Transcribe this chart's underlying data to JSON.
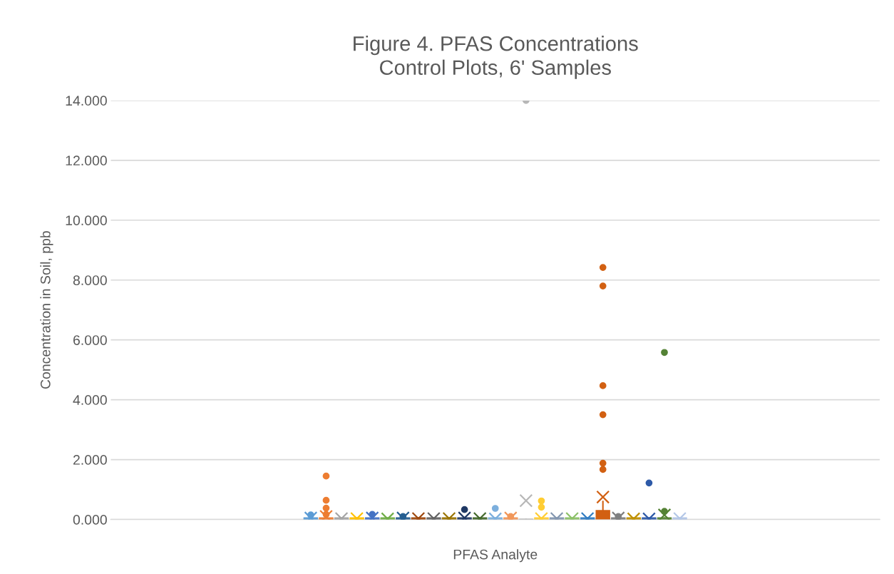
{
  "chart_data": {
    "type": "box",
    "title": "Figure 4. PFAS Concentrations\nControl Plots, 6' Samples",
    "ylabel": "Concentration in Soil, ppb",
    "categories": [
      "PFAS Analyte"
    ],
    "series": [
      {
        "color": "#5b9bd5",
        "boxes": [
          {
            "low": 0,
            "q1": 0,
            "median": 0,
            "q3": 0.05,
            "high": 0.05,
            "mean": 0.05,
            "outliers": [
              0.15
            ]
          }
        ]
      },
      {
        "color": "#ed7d31",
        "boxes": [
          {
            "low": 0,
            "q1": 0,
            "median": 0,
            "q3": 0.05,
            "high": 0.05,
            "mean": 0.1,
            "outliers": [
              1.45,
              0.64,
              0.38,
              0.17
            ]
          }
        ]
      },
      {
        "color": "#a5a5a5",
        "boxes": [
          {
            "low": 0,
            "q1": 0,
            "median": 0,
            "q3": 0.05,
            "high": 0.05,
            "mean": 0.03
          }
        ]
      },
      {
        "color": "#ffc000",
        "boxes": [
          {
            "low": 0,
            "q1": 0,
            "median": 0,
            "q3": 0.05,
            "high": 0.05,
            "mean": 0.03
          }
        ]
      },
      {
        "color": "#4472c4",
        "boxes": [
          {
            "low": 0,
            "q1": 0,
            "median": 0,
            "q3": 0.05,
            "high": 0.05,
            "mean": 0.05,
            "outliers": [
              0.17
            ]
          }
        ]
      },
      {
        "color": "#70ad47",
        "boxes": [
          {
            "low": 0,
            "q1": 0,
            "median": 0,
            "q3": 0.05,
            "high": 0.05,
            "mean": 0.02
          }
        ]
      },
      {
        "color": "#255e91",
        "boxes": [
          {
            "low": 0,
            "q1": 0,
            "median": 0,
            "q3": 0.05,
            "high": 0.05,
            "mean": 0.05,
            "outliers": [
              0.1
            ]
          }
        ]
      },
      {
        "color": "#9e480e",
        "boxes": [
          {
            "low": 0,
            "q1": 0,
            "median": 0,
            "q3": 0.05,
            "high": 0.05,
            "mean": 0.03
          }
        ]
      },
      {
        "color": "#636363",
        "boxes": [
          {
            "low": 0,
            "q1": 0,
            "median": 0,
            "q3": 0.05,
            "high": 0.05,
            "mean": 0.03
          }
        ]
      },
      {
        "color": "#997300",
        "boxes": [
          {
            "low": 0,
            "q1": 0,
            "median": 0,
            "q3": 0.05,
            "high": 0.05,
            "mean": 0.03
          }
        ]
      },
      {
        "color": "#1f3864",
        "boxes": [
          {
            "low": 0,
            "q1": 0,
            "median": 0,
            "q3": 0.05,
            "high": 0.05,
            "mean": 0.05,
            "outliers": [
              0.33
            ]
          }
        ]
      },
      {
        "color": "#43682b",
        "boxes": [
          {
            "low": 0,
            "q1": 0,
            "median": 0,
            "q3": 0.05,
            "high": 0.05,
            "mean": 0.03
          }
        ]
      },
      {
        "color": "#7cafdd",
        "boxes": [
          {
            "low": 0,
            "q1": 0,
            "median": 0,
            "q3": 0.05,
            "high": 0.05,
            "mean": 0.02,
            "outliers": [
              0.37
            ]
          }
        ]
      },
      {
        "color": "#f1975a",
        "boxes": [
          {
            "low": 0,
            "q1": 0,
            "median": 0,
            "q3": 0.05,
            "high": 0.05,
            "mean": 0.05,
            "outliers": [
              0.1
            ]
          }
        ]
      },
      {
        "color": "#b7b7b7",
        "boxes": [
          {
            "low": 0,
            "q1": 0,
            "median": 0,
            "q3": 0,
            "high": 0,
            "mean": 0.63,
            "outliers": [
              14.0
            ]
          }
        ]
      },
      {
        "color": "#ffcd33",
        "boxes": [
          {
            "low": 0,
            "q1": 0,
            "median": 0,
            "q3": 0.05,
            "high": 0.05,
            "mean": 0.03,
            "outliers": [
              0.62,
              0.41
            ]
          }
        ]
      },
      {
        "color": "#8497b0",
        "boxes": [
          {
            "low": 0,
            "q1": 0,
            "median": 0,
            "q3": 0.05,
            "high": 0.05,
            "mean": 0.03
          }
        ]
      },
      {
        "color": "#8cc168",
        "boxes": [
          {
            "low": 0,
            "q1": 0,
            "median": 0,
            "q3": 0.05,
            "high": 0.05,
            "mean": 0.03
          }
        ]
      },
      {
        "color": "#327dc2",
        "boxes": [
          {
            "low": 0,
            "q1": 0,
            "median": 0,
            "q3": 0.05,
            "high": 0.05,
            "mean": 0.03
          }
        ]
      },
      {
        "color": "#d26012",
        "boxes": [
          {
            "low": 0,
            "q1": 0,
            "median": 0.02,
            "q3": 0.29,
            "high": 0.6,
            "mean": 0.75,
            "outliers": [
              8.42,
              7.8,
              4.47,
              3.5,
              1.88,
              1.67
            ]
          }
        ]
      },
      {
        "color": "#7f7f7f",
        "boxes": [
          {
            "low": 0,
            "q1": 0,
            "median": 0,
            "q3": 0.05,
            "high": 0.05,
            "mean": 0.05,
            "outliers": [
              0.1
            ]
          }
        ]
      },
      {
        "color": "#bf9000",
        "boxes": [
          {
            "low": 0,
            "q1": 0,
            "median": 0,
            "q3": 0.05,
            "high": 0.05,
            "mean": 0.02
          }
        ]
      },
      {
        "color": "#2e5aa8",
        "boxes": [
          {
            "low": 0,
            "q1": 0,
            "median": 0,
            "q3": 0.05,
            "high": 0.05,
            "mean": 0.02,
            "outliers": [
              1.22
            ]
          }
        ]
      },
      {
        "color": "#548235",
        "boxes": [
          {
            "low": 0,
            "q1": 0,
            "median": 0,
            "q3": 0.05,
            "high": 0.05,
            "mean": 0.15,
            "outliers": [
              5.58,
              0.27
            ]
          }
        ]
      },
      {
        "color": "#b4c7e7",
        "boxes": [
          {
            "low": 0,
            "q1": 0,
            "median": 0,
            "q3": 0.05,
            "high": 0.05,
            "mean": 0.03
          }
        ]
      }
    ],
    "ylim": [
      0,
      14
    ],
    "yticks": [
      {
        "value": 0,
        "label": "0.000"
      },
      {
        "value": 2,
        "label": "2.000"
      },
      {
        "value": 4,
        "label": "4.000"
      },
      {
        "value": 6,
        "label": "6.000"
      },
      {
        "value": 8,
        "label": "8.000"
      },
      {
        "value": 10,
        "label": "10.000"
      },
      {
        "value": 12,
        "label": "12.000"
      },
      {
        "value": 14,
        "label": "14.000"
      }
    ],
    "grid": "y",
    "marker": "circle"
  }
}
